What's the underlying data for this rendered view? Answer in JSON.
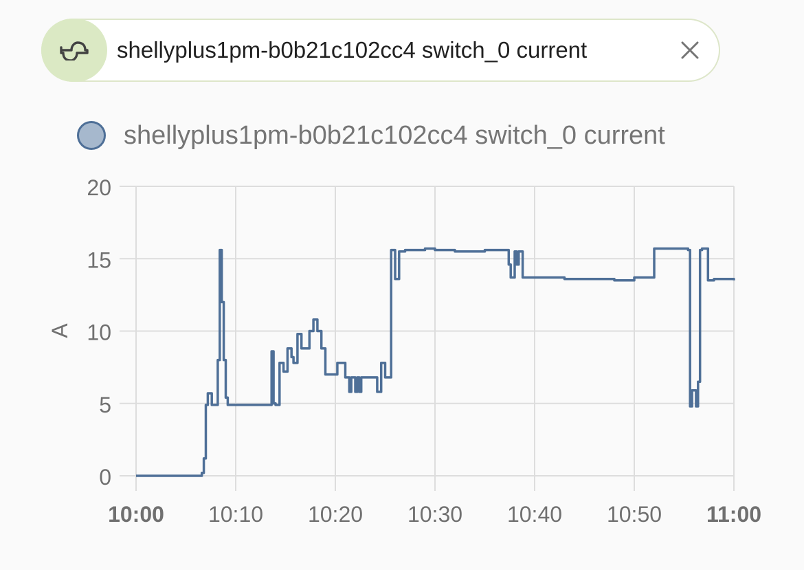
{
  "filter_chip": {
    "icon": "sine-wave-icon",
    "label": "shellyplus1pm-b0b21c102cc4 switch_0 current",
    "close_icon": "close-icon"
  },
  "colors": {
    "series_line": "#4e6f97",
    "legend_fill": "#a6b8cd",
    "chip_icon_bg": "#dbe9c4",
    "gridline": "#dddddd"
  },
  "chart_data": {
    "type": "line",
    "step": true,
    "legend": {
      "position": "top-left"
    },
    "grid": true,
    "xlabel": "",
    "ylabel": "A",
    "xlim": [
      "10:00",
      "11:00"
    ],
    "ylim": [
      0,
      20
    ],
    "x_ticks": [
      {
        "label": "10:00",
        "bold": true
      },
      {
        "label": "10:10",
        "bold": false
      },
      {
        "label": "10:20",
        "bold": false
      },
      {
        "label": "10:30",
        "bold": false
      },
      {
        "label": "10:40",
        "bold": false
      },
      {
        "label": "10:50",
        "bold": false
      },
      {
        "label": "11:00",
        "bold": true
      }
    ],
    "y_ticks": [
      "0",
      "5",
      "10",
      "15",
      "20"
    ],
    "series": [
      {
        "name": "shellyplus1pm-b0b21c102cc4 switch_0 current",
        "x": [
          "10:00:00",
          "10:06:36",
          "10:06:48",
          "10:07:00",
          "10:07:12",
          "10:07:36",
          "10:08:12",
          "10:08:24",
          "10:08:36",
          "10:08:48",
          "10:09:00",
          "10:09:12",
          "10:09:24",
          "10:13:12",
          "10:13:36",
          "10:13:48",
          "10:14:00",
          "10:14:24",
          "10:14:48",
          "10:15:12",
          "10:15:36",
          "10:15:48",
          "10:16:12",
          "10:16:36",
          "10:17:00",
          "10:17:24",
          "10:17:48",
          "10:18:12",
          "10:18:36",
          "10:19:00",
          "10:20:12",
          "10:21:00",
          "10:21:24",
          "10:21:36",
          "10:22:00",
          "10:22:12",
          "10:22:24",
          "10:22:36",
          "10:24:12",
          "10:24:36",
          "10:25:00",
          "10:25:36",
          "10:26:00",
          "10:26:24",
          "10:27:00",
          "10:29:00",
          "10:30:00",
          "10:32:00",
          "10:34:00",
          "10:35:00",
          "10:37:00",
          "10:37:24",
          "10:37:36",
          "10:38:00",
          "10:38:12",
          "10:38:24",
          "10:38:48",
          "10:40:00",
          "10:42:00",
          "10:43:00",
          "10:45:00",
          "10:47:00",
          "10:48:00",
          "10:50:00",
          "10:52:00",
          "10:53:00",
          "10:55:24",
          "10:55:36",
          "10:55:48",
          "10:56:12",
          "10:56:24",
          "10:56:36",
          "10:56:48",
          "10:57:24",
          "10:58:00",
          "11:00:00"
        ],
        "y": [
          0,
          0.2,
          1.2,
          4.9,
          5.7,
          4.9,
          8.0,
          15.6,
          12.0,
          8.0,
          5.4,
          4.9,
          4.9,
          4.9,
          8.6,
          5.0,
          4.9,
          7.8,
          7.2,
          8.8,
          8.2,
          7.8,
          9.8,
          8.8,
          8.8,
          10.0,
          10.8,
          10.0,
          8.8,
          7.0,
          7.8,
          6.8,
          5.8,
          6.8,
          5.8,
          6.8,
          5.8,
          6.8,
          5.8,
          7.8,
          6.8,
          15.6,
          13.6,
          15.5,
          15.6,
          15.7,
          15.6,
          15.5,
          15.5,
          15.6,
          15.6,
          14.6,
          13.7,
          15.5,
          14.6,
          15.5,
          13.7,
          13.7,
          13.7,
          13.6,
          13.6,
          13.6,
          13.5,
          13.7,
          15.7,
          15.7,
          15.6,
          4.8,
          5.9,
          4.8,
          6.5,
          15.6,
          15.7,
          13.5,
          13.6,
          13.5
        ]
      }
    ]
  }
}
